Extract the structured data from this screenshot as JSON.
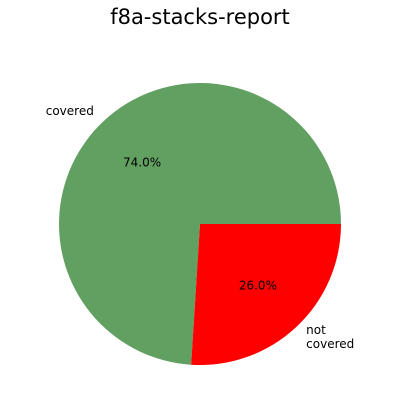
{
  "chart_data": {
    "type": "pie",
    "title": "f8a-stacks-report",
    "slices": [
      {
        "label": "covered",
        "value": 74.0,
        "percent_label": "74.0%",
        "color": "#62a062"
      },
      {
        "label": "not covered",
        "value": 26.0,
        "percent_label": "26.0%",
        "color": "#ff0000"
      }
    ],
    "start_angle_deg": 0,
    "direction": "counterclockwise",
    "legend": "none"
  }
}
